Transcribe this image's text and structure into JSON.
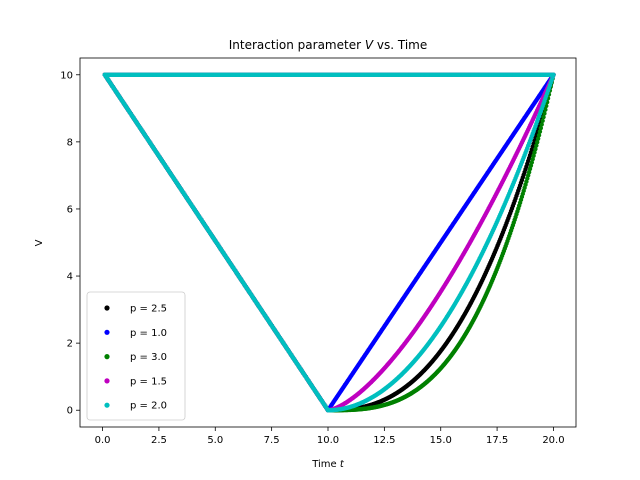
{
  "chart_data": {
    "type": "scatter",
    "title": "Interaction parameter V vs. Time",
    "title_parts": [
      "Interaction parameter ",
      "V",
      " vs. Time"
    ],
    "xlabel": "Time t",
    "xlabel_parts": [
      "Time ",
      "t"
    ],
    "ylabel": "V",
    "xlim": [
      -1.0,
      21.0
    ],
    "ylim": [
      -0.5,
      10.5
    ],
    "xticks": [
      0.0,
      2.5,
      5.0,
      7.5,
      10.0,
      12.5,
      15.0,
      17.5,
      20.0
    ],
    "xtick_labels": [
      "0.0",
      "2.5",
      "5.0",
      "7.5",
      "10.0",
      "12.5",
      "15.0",
      "17.5",
      "20.0"
    ],
    "yticks": [
      0,
      2,
      4,
      6,
      8,
      10
    ],
    "ytick_labels": [
      "0",
      "2",
      "4",
      "6",
      "8",
      "10"
    ],
    "grid": false,
    "legend_position": "lower-left",
    "t_start": 0.1,
    "t_end": 20.0,
    "t_mid": 10.0,
    "v_max": 10,
    "series": [
      {
        "name": "p = 2.5",
        "p": 2.5,
        "color": "#000000"
      },
      {
        "name": "p = 1.0",
        "p": 1.0,
        "color": "#0000ff"
      },
      {
        "name": "p = 3.0",
        "p": 3.0,
        "color": "#008000"
      },
      {
        "name": "p = 1.5",
        "p": 1.5,
        "color": "#bf00bf"
      },
      {
        "name": "p = 2.0",
        "p": 2.0,
        "color": "#00bfbf"
      }
    ]
  }
}
